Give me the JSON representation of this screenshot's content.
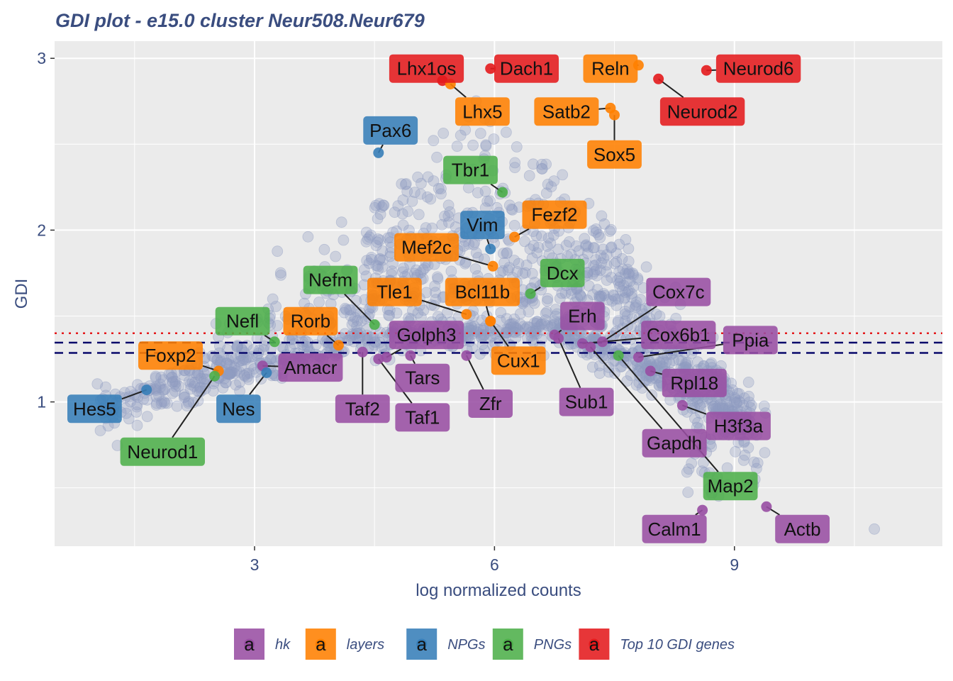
{
  "chart_data": {
    "type": "scatter",
    "title": "GDI plot - e15.0 cluster Neur508.Neur679",
    "xlabel": "log normalized counts",
    "ylabel": "GDI",
    "xlim": [
      0.5,
      11.6
    ],
    "ylim": [
      0.16,
      3.1
    ],
    "x_ticks": [
      3,
      6,
      9
    ],
    "y_ticks": [
      1,
      2,
      3
    ],
    "thresholds": [
      {
        "y": 1.4,
        "color": "#e41a1c",
        "style": "dotted"
      },
      {
        "y": 1.345,
        "color": "#08086b",
        "style": "dashed"
      },
      {
        "y": 1.285,
        "color": "#08086b",
        "style": "dashed"
      }
    ],
    "legend": [
      {
        "key": "hk",
        "label": "hk",
        "color": "#984ea3"
      },
      {
        "key": "layers",
        "label": "layers",
        "color": "#ff7f00"
      },
      {
        "key": "NPGs",
        "label": "NPGs",
        "color": "#377eb8"
      },
      {
        "key": "PNGs",
        "label": "PNGs",
        "color": "#4daf4a"
      },
      {
        "key": "top10",
        "label": "Top 10 GDI genes",
        "color": "#e41a1c"
      }
    ],
    "legend_glyph": "a",
    "legend_position": "bottom",
    "background_cloud_color": "#8f9bc0",
    "genes": [
      {
        "name": "Lhx1os",
        "group": "top10",
        "x": 5.35,
        "y": 2.87,
        "lx": 5.15,
        "ly": 2.94
      },
      {
        "name": "Dach1",
        "group": "top10",
        "x": 5.95,
        "y": 2.94,
        "lx": 6.4,
        "ly": 2.94
      },
      {
        "name": "Reln",
        "group": "layers",
        "x": 7.8,
        "y": 2.96,
        "lx": 7.45,
        "ly": 2.94
      },
      {
        "name": "Neurod6",
        "group": "top10",
        "x": 8.65,
        "y": 2.93,
        "lx": 9.3,
        "ly": 2.94
      },
      {
        "name": "Neurod2",
        "group": "top10",
        "x": 8.05,
        "y": 2.88,
        "lx": 8.6,
        "ly": 2.69
      },
      {
        "name": "Lhx5",
        "group": "layers",
        "x": 5.45,
        "y": 2.85,
        "lx": 5.85,
        "ly": 2.69
      },
      {
        "name": "Satb2",
        "group": "layers",
        "x": 7.45,
        "y": 2.71,
        "lx": 6.9,
        "ly": 2.69
      },
      {
        "name": "Sox5",
        "group": "layers",
        "x": 7.5,
        "y": 2.67,
        "lx": 7.5,
        "ly": 2.44
      },
      {
        "name": "Pax6",
        "group": "NPGs",
        "x": 4.55,
        "y": 2.45,
        "lx": 4.7,
        "ly": 2.58
      },
      {
        "name": "Tbr1",
        "group": "PNGs",
        "x": 6.1,
        "y": 2.22,
        "lx": 5.7,
        "ly": 2.35
      },
      {
        "name": "Fezf2",
        "group": "layers",
        "x": 6.25,
        "y": 1.96,
        "lx": 6.75,
        "ly": 2.09
      },
      {
        "name": "Vim",
        "group": "NPGs",
        "x": 5.95,
        "y": 1.89,
        "lx": 5.85,
        "ly": 2.03
      },
      {
        "name": "Mef2c",
        "group": "layers",
        "x": 5.98,
        "y": 1.79,
        "lx": 5.15,
        "ly": 1.9
      },
      {
        "name": "Dcx",
        "group": "PNGs",
        "x": 6.45,
        "y": 1.63,
        "lx": 6.85,
        "ly": 1.75
      },
      {
        "name": "Nefm",
        "group": "PNGs",
        "x": 4.5,
        "y": 1.45,
        "lx": 3.95,
        "ly": 1.71
      },
      {
        "name": "Tle1",
        "group": "layers",
        "x": 5.65,
        "y": 1.51,
        "lx": 4.75,
        "ly": 1.64
      },
      {
        "name": "Bcl11b",
        "group": "layers",
        "x": 5.95,
        "y": 1.47,
        "lx": 5.85,
        "ly": 1.64
      },
      {
        "name": "Cox7c",
        "group": "hk",
        "x": 7.35,
        "y": 1.35,
        "lx": 8.3,
        "ly": 1.64
      },
      {
        "name": "Erh",
        "group": "hk",
        "x": 6.75,
        "y": 1.39,
        "lx": 7.1,
        "ly": 1.5
      },
      {
        "name": "Nefl",
        "group": "PNGs",
        "x": 3.25,
        "y": 1.35,
        "lx": 2.85,
        "ly": 1.47
      },
      {
        "name": "Rorb",
        "group": "layers",
        "x": 4.05,
        "y": 1.33,
        "lx": 3.7,
        "ly": 1.47
      },
      {
        "name": "Golph3",
        "group": "hk",
        "x": 4.65,
        "y": 1.26,
        "lx": 5.15,
        "ly": 1.39
      },
      {
        "name": "Cox6b1",
        "group": "hk",
        "x": 7.1,
        "y": 1.34,
        "lx": 8.3,
        "ly": 1.39
      },
      {
        "name": "Ppia",
        "group": "hk",
        "x": 7.8,
        "y": 1.26,
        "lx": 9.2,
        "ly": 1.36
      },
      {
        "name": "Foxp2",
        "group": "layers",
        "x": 2.55,
        "y": 1.18,
        "lx": 1.95,
        "ly": 1.27
      },
      {
        "name": "Cux1",
        "group": "layers",
        "x": 5.95,
        "y": 1.47,
        "lx": 6.3,
        "ly": 1.24
      },
      {
        "name": "Amacr",
        "group": "hk",
        "x": 3.1,
        "y": 1.21,
        "lx": 3.7,
        "ly": 1.2
      },
      {
        "name": "Tars",
        "group": "hk",
        "x": 4.95,
        "y": 1.27,
        "lx": 5.1,
        "ly": 1.14
      },
      {
        "name": "Rpl18",
        "group": "hk",
        "x": 7.95,
        "y": 1.18,
        "lx": 8.5,
        "ly": 1.11
      },
      {
        "name": "Hes5",
        "group": "NPGs",
        "x": 1.65,
        "y": 1.07,
        "lx": 1.0,
        "ly": 0.96
      },
      {
        "name": "Nes",
        "group": "NPGs",
        "x": 3.15,
        "y": 1.17,
        "lx": 2.8,
        "ly": 0.96
      },
      {
        "name": "Taf2",
        "group": "hk",
        "x": 4.35,
        "y": 1.29,
        "lx": 4.35,
        "ly": 0.96
      },
      {
        "name": "Taf1",
        "group": "hk",
        "x": 4.55,
        "y": 1.25,
        "lx": 5.1,
        "ly": 0.91
      },
      {
        "name": "Zfr",
        "group": "hk",
        "x": 5.65,
        "y": 1.27,
        "lx": 5.95,
        "ly": 0.99
      },
      {
        "name": "Sub1",
        "group": "hk",
        "x": 6.8,
        "y": 1.37,
        "lx": 7.15,
        "ly": 1.0
      },
      {
        "name": "H3f3a",
        "group": "hk",
        "x": 8.35,
        "y": 0.98,
        "lx": 9.05,
        "ly": 0.86
      },
      {
        "name": "Gapdh",
        "group": "hk",
        "x": 7.2,
        "y": 1.32,
        "lx": 8.25,
        "ly": 0.76
      },
      {
        "name": "Neurod1",
        "group": "PNGs",
        "x": 2.5,
        "y": 1.15,
        "lx": 1.85,
        "ly": 0.71
      },
      {
        "name": "Map2",
        "group": "PNGs",
        "x": 7.55,
        "y": 1.27,
        "lx": 8.95,
        "ly": 0.51
      },
      {
        "name": "Calm1",
        "group": "hk",
        "x": 8.6,
        "y": 0.37,
        "lx": 8.25,
        "ly": 0.26
      },
      {
        "name": "Actb",
        "group": "hk",
        "x": 9.4,
        "y": 0.39,
        "lx": 9.85,
        "ly": 0.26
      }
    ]
  }
}
